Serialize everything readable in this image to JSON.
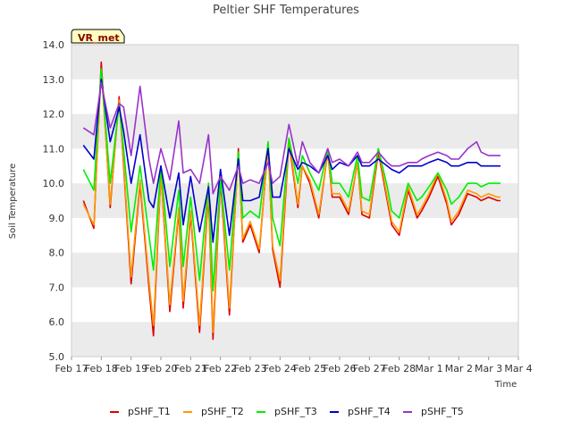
{
  "chart_data": {
    "type": "line",
    "title": "Peltier SHF Temperatures",
    "xlabel": "Time",
    "ylabel": "Soil Temperature",
    "badge": "VR_met",
    "ylim": [
      5.0,
      14.0
    ],
    "yticks": [
      "5.0",
      "6.0",
      "7.0",
      "8.0",
      "9.0",
      "10.0",
      "11.0",
      "12.0",
      "13.0",
      "14.0"
    ],
    "xticks": [
      "Feb 17",
      "Feb 18",
      "Feb 19",
      "Feb 20",
      "Feb 21",
      "Feb 22",
      "Feb 23",
      "Feb 24",
      "Feb 25",
      "Feb 26",
      "Feb 27",
      "Feb 28",
      "Mar 1",
      "Mar 2",
      "Mar 3",
      "Mar 4"
    ],
    "grid": "horizontal bands",
    "legend_position": "bottom",
    "colors": {
      "band": "#ebebeb",
      "background": "#ffffff"
    },
    "x": [
      0.4,
      0.75,
      1.0,
      1.3,
      1.6,
      1.75,
      2.0,
      2.3,
      2.6,
      2.75,
      3.0,
      3.3,
      3.6,
      3.75,
      4.0,
      4.3,
      4.6,
      4.75,
      5.0,
      5.3,
      5.6,
      5.75,
      6.0,
      6.3,
      6.6,
      6.75,
      7.0,
      7.3,
      7.6,
      7.75,
      8.0,
      8.3,
      8.6,
      8.75,
      9.0,
      9.3,
      9.6,
      9.75,
      10.0,
      10.3,
      10.6,
      10.75,
      11.0,
      11.3,
      11.6,
      11.75,
      12.0,
      12.3,
      12.6,
      12.75,
      13.0,
      13.3,
      13.6,
      13.75,
      14.0,
      14.3,
      14.4
    ],
    "series": [
      {
        "name": "pSHF_T1",
        "color": "#dd0000",
        "values": [
          9.5,
          8.7,
          13.5,
          9.3,
          12.5,
          10.5,
          7.1,
          10.0,
          7.0,
          5.6,
          10.3,
          6.3,
          9.2,
          6.4,
          9.1,
          5.7,
          9.7,
          5.5,
          10.1,
          6.2,
          11.0,
          8.3,
          8.8,
          8.0,
          11.1,
          8.1,
          7.0,
          11.2,
          9.3,
          10.5,
          10.0,
          9.0,
          10.9,
          9.6,
          9.6,
          9.1,
          10.6,
          9.1,
          9.0,
          10.9,
          9.5,
          8.8,
          8.5,
          9.8,
          9.0,
          9.2,
          9.6,
          10.2,
          9.4,
          8.8,
          9.1,
          9.7,
          9.6,
          9.5,
          9.6,
          9.5,
          9.5
        ]
      },
      {
        "name": "pSHF_T2",
        "color": "#ff9900",
        "values": [
          9.4,
          8.8,
          13.3,
          9.4,
          12.4,
          10.6,
          7.3,
          10.1,
          7.2,
          5.9,
          10.3,
          6.5,
          9.3,
          6.6,
          9.2,
          5.9,
          9.8,
          5.7,
          10.2,
          6.4,
          10.9,
          8.4,
          8.9,
          8.1,
          11.0,
          8.2,
          7.2,
          11.3,
          9.4,
          10.5,
          10.1,
          9.1,
          10.9,
          9.7,
          9.7,
          9.2,
          10.6,
          9.2,
          9.1,
          11.0,
          9.6,
          8.9,
          8.6,
          9.9,
          9.1,
          9.3,
          9.7,
          10.3,
          9.5,
          8.9,
          9.2,
          9.8,
          9.7,
          9.6,
          9.7,
          9.6,
          9.6
        ]
      },
      {
        "name": "pSHF_T3",
        "color": "#00ee00",
        "values": [
          10.4,
          9.8,
          13.3,
          10.0,
          12.3,
          11.0,
          8.6,
          10.5,
          8.5,
          7.5,
          10.5,
          7.6,
          9.8,
          7.6,
          9.6,
          7.2,
          10.0,
          6.9,
          10.1,
          7.5,
          10.9,
          9.0,
          9.2,
          9.0,
          11.2,
          9.0,
          8.2,
          11.3,
          10.0,
          10.8,
          10.3,
          9.8,
          11.0,
          10.0,
          10.0,
          9.6,
          10.8,
          9.6,
          9.5,
          11.0,
          9.9,
          9.2,
          9.0,
          10.0,
          9.5,
          9.6,
          9.9,
          10.3,
          9.8,
          9.4,
          9.6,
          10.0,
          10.0,
          9.9,
          10.0,
          10.0,
          10.0
        ]
      },
      {
        "name": "pSHF_T4",
        "color": "#0000cc",
        "values": [
          11.1,
          10.7,
          13.0,
          11.2,
          12.2,
          11.5,
          10.0,
          11.4,
          9.5,
          9.3,
          10.5,
          9.0,
          10.3,
          8.8,
          10.2,
          8.6,
          9.9,
          8.3,
          10.4,
          8.5,
          10.7,
          9.5,
          9.5,
          9.6,
          11.0,
          9.6,
          9.6,
          11.0,
          10.4,
          10.6,
          10.5,
          10.3,
          10.8,
          10.4,
          10.6,
          10.5,
          10.8,
          10.5,
          10.5,
          10.7,
          10.5,
          10.4,
          10.3,
          10.5,
          10.5,
          10.5,
          10.6,
          10.7,
          10.6,
          10.5,
          10.5,
          10.6,
          10.6,
          10.5,
          10.5,
          10.5,
          10.5
        ]
      },
      {
        "name": "pSHF_T5",
        "color": "#9933cc",
        "values": [
          11.6,
          11.4,
          12.9,
          11.6,
          12.3,
          12.2,
          10.8,
          12.8,
          10.7,
          10.0,
          11.0,
          10.1,
          11.8,
          10.3,
          10.4,
          10.0,
          11.4,
          9.7,
          10.2,
          9.8,
          10.5,
          10.0,
          10.1,
          10.0,
          10.6,
          10.0,
          10.2,
          11.7,
          10.5,
          11.2,
          10.6,
          10.3,
          11.0,
          10.6,
          10.7,
          10.5,
          10.9,
          10.6,
          10.6,
          10.9,
          10.6,
          10.5,
          10.5,
          10.6,
          10.6,
          10.7,
          10.8,
          10.9,
          10.8,
          10.7,
          10.7,
          11.0,
          11.2,
          10.9,
          10.8,
          10.8,
          10.8
        ]
      }
    ]
  }
}
